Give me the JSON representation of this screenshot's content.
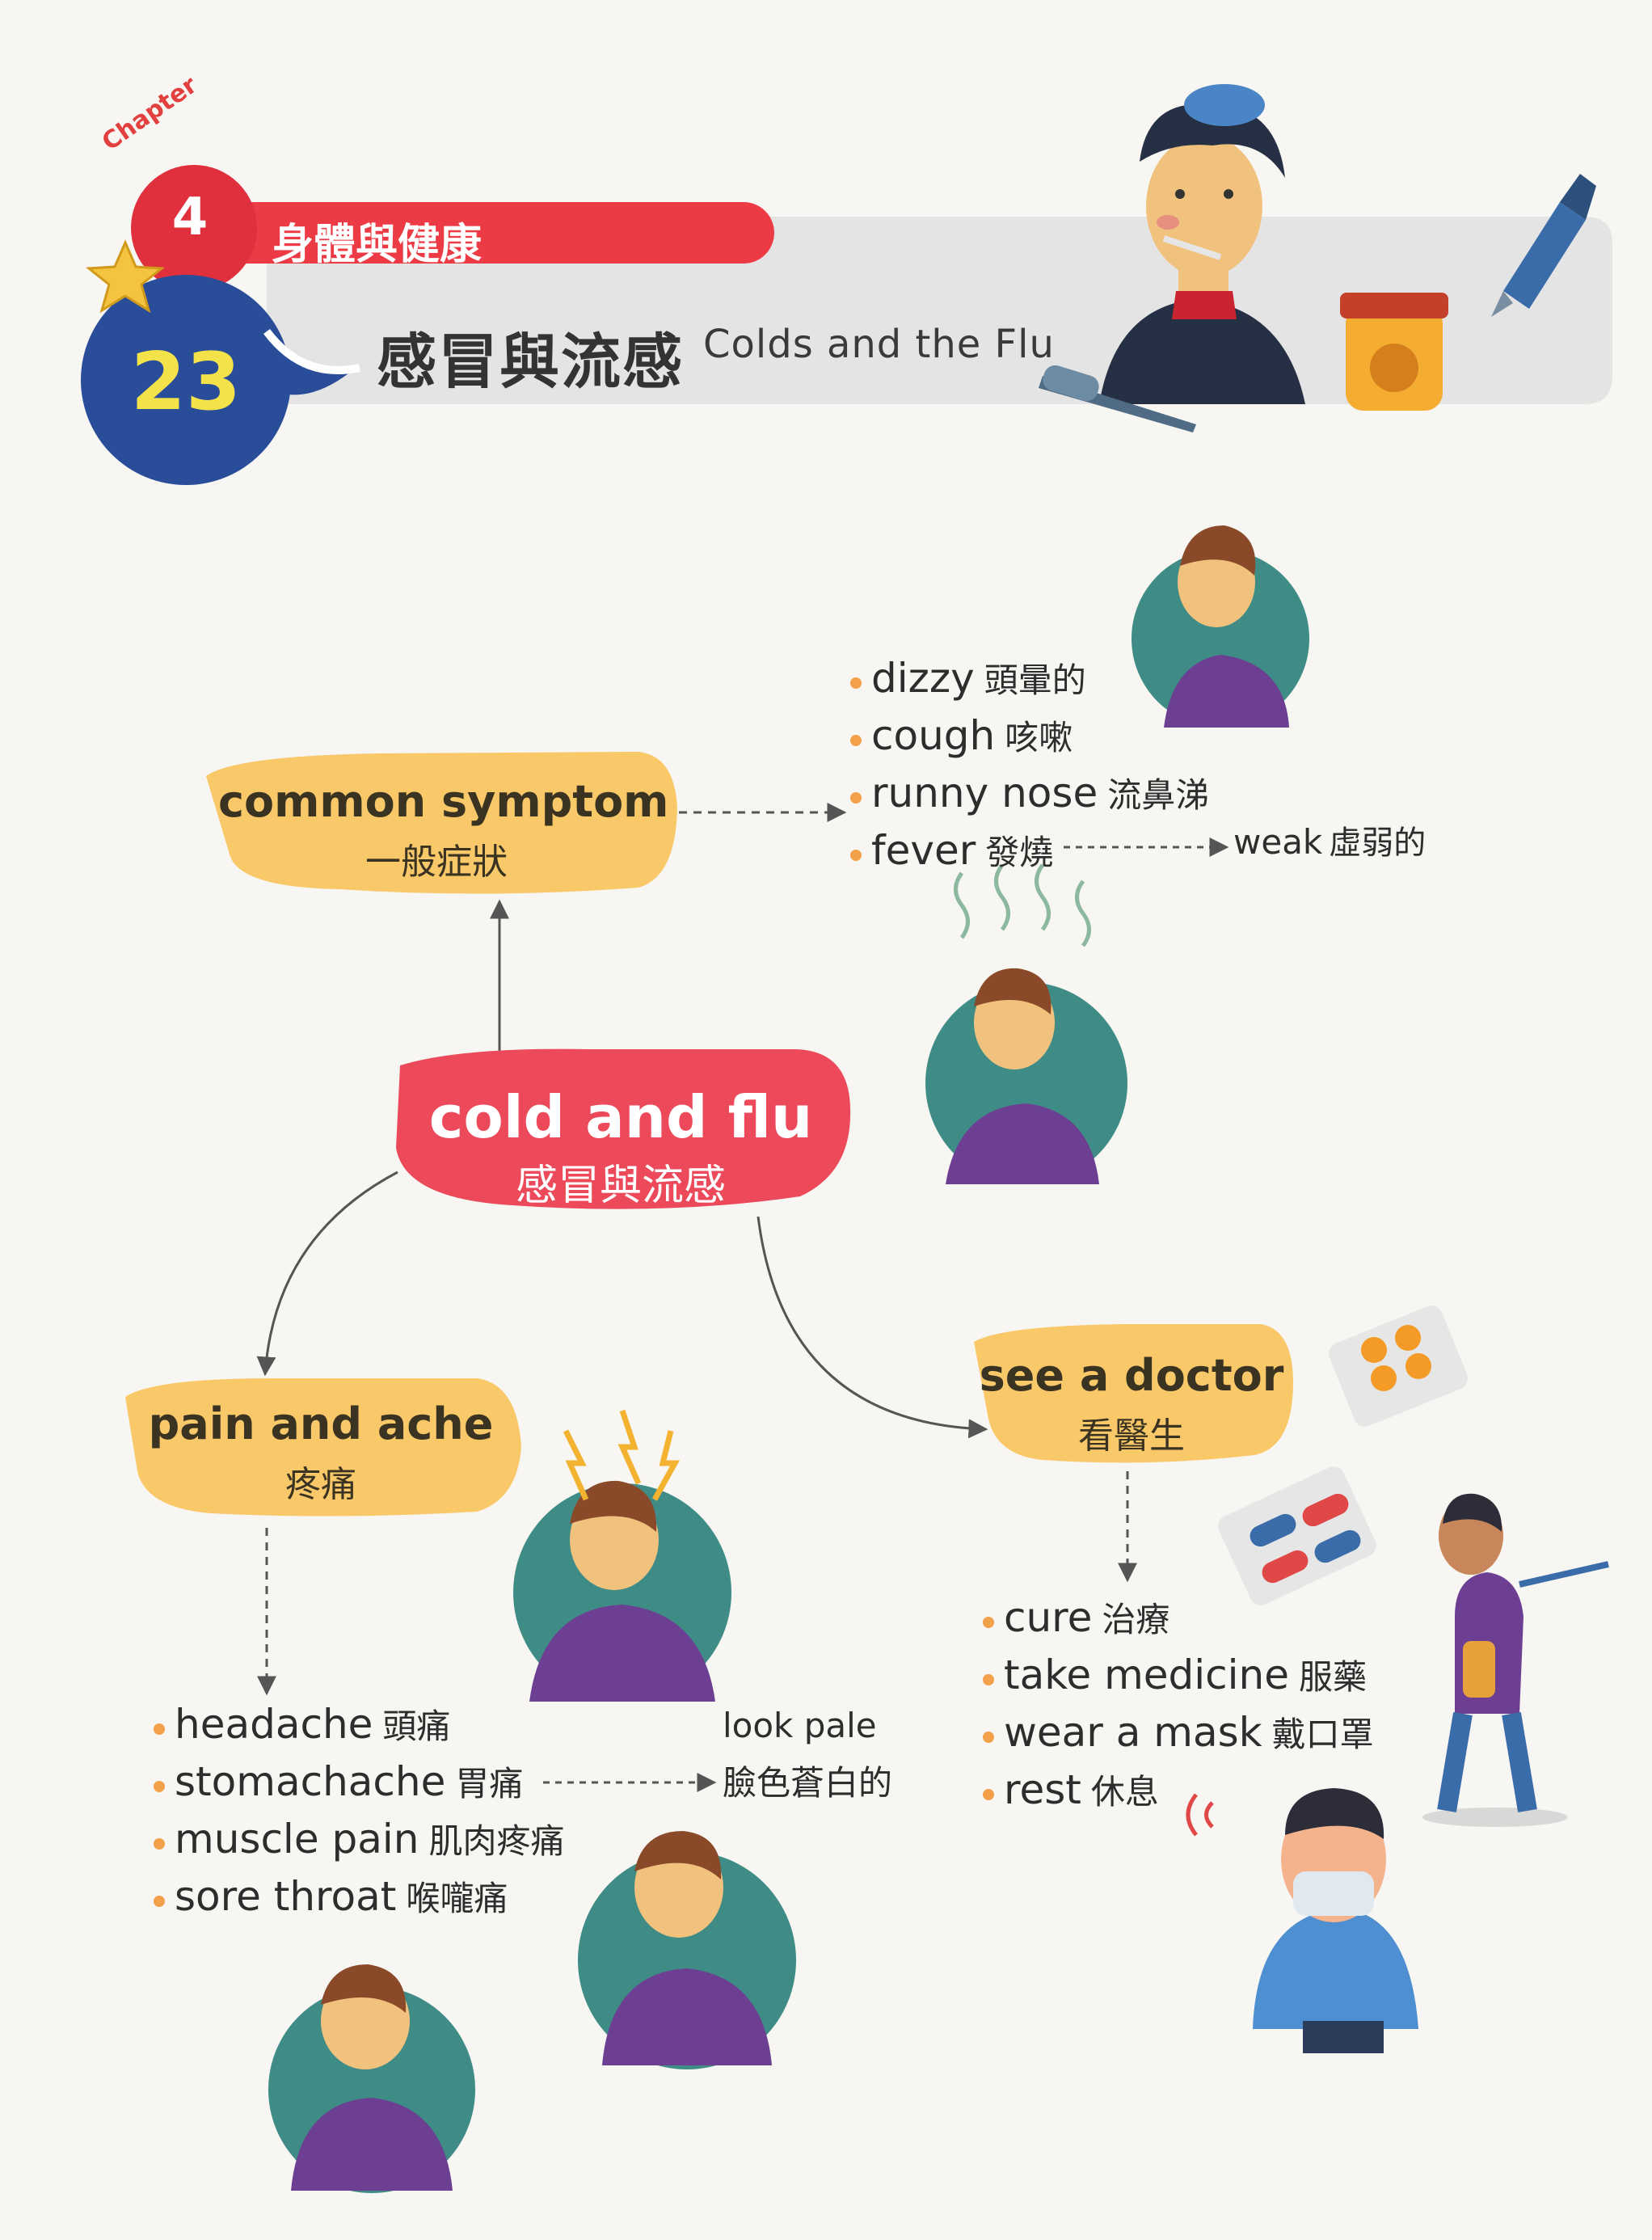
{
  "header": {
    "chapter_word": "Chapter",
    "chapter_number": "4",
    "chapter_title": "身體與健康",
    "lesson_number": "23",
    "lesson_title_zh": "感冒與流感",
    "lesson_title_en": "Colds and the Flu"
  },
  "center": {
    "en": "cold and flu",
    "zh": "感冒與流感"
  },
  "common_symptom": {
    "en": "common symptom",
    "zh": "一般症狀",
    "items": [
      {
        "en": "dizzy",
        "zh": "頭暈的"
      },
      {
        "en": "cough",
        "zh": "咳嗽"
      },
      {
        "en": "runny nose",
        "zh": "流鼻涕"
      },
      {
        "en": "fever",
        "zh": "發燒"
      }
    ],
    "fever_result": {
      "en": "weak",
      "zh": "虛弱的"
    }
  },
  "pain_and_ache": {
    "en": "pain and ache",
    "zh": "疼痛",
    "items": [
      {
        "en": "headache",
        "zh": "頭痛"
      },
      {
        "en": "stomachache",
        "zh": "胃痛"
      },
      {
        "en": "muscle pain",
        "zh": "肌肉疼痛"
      },
      {
        "en": "sore throat",
        "zh": "喉嚨痛"
      }
    ],
    "stomachache_result": {
      "en": "look pale",
      "zh": "臉色蒼白的"
    }
  },
  "see_a_doctor": {
    "en": "see a doctor",
    "zh": "看醫生",
    "items": [
      {
        "en": "cure",
        "zh": "治療"
      },
      {
        "en": "take medicine",
        "zh": "服藥"
      },
      {
        "en": "wear a mask",
        "zh": "戴口罩"
      },
      {
        "en": "rest",
        "zh": "休息"
      }
    ]
  },
  "colors": {
    "red": "#ec4a5b",
    "yellow_bubble": "#f9c869",
    "blue": "#2a4d9a",
    "teal": "#3f8c86",
    "purple": "#6c3f93",
    "bullet": "#f3a04a"
  }
}
